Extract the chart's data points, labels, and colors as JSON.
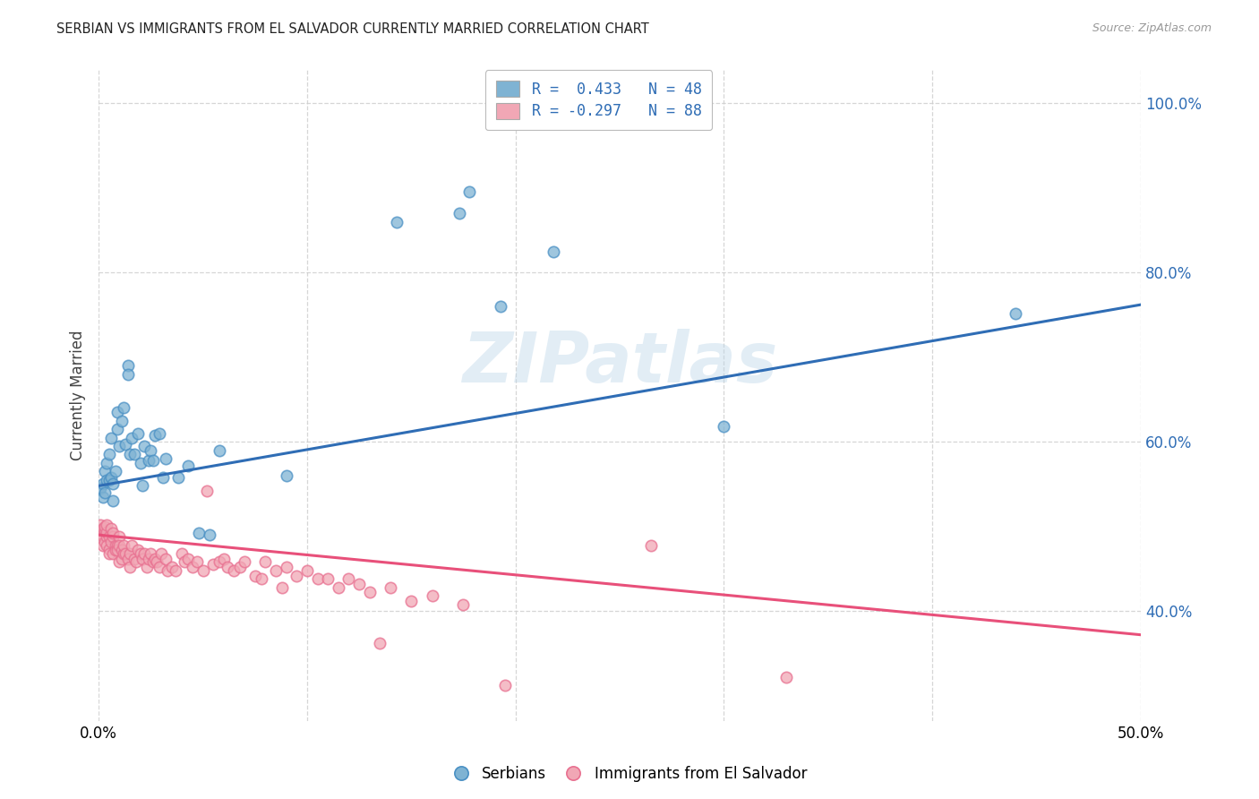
{
  "title": "SERBIAN VS IMMIGRANTS FROM EL SALVADOR CURRENTLY MARRIED CORRELATION CHART",
  "source": "Source: ZipAtlas.com",
  "ylabel": "Currently Married",
  "watermark": "ZIPatlas",
  "legend_r1": "R =  0.433",
  "legend_n1": "N = 48",
  "legend_r2": "R = -0.297",
  "legend_n2": "N = 88",
  "legend_label1": "Serbians",
  "legend_label2": "Immigrants from El Salvador",
  "xlim": [
    0.0,
    0.5
  ],
  "ylim": [
    0.27,
    1.04
  ],
  "yticks": [
    0.4,
    0.6,
    0.8,
    1.0
  ],
  "ytick_labels": [
    "40.0%",
    "60.0%",
    "80.0%",
    "100.0%"
  ],
  "xticks": [
    0.0,
    0.1,
    0.2,
    0.3,
    0.4,
    0.5
  ],
  "xtick_labels": [
    "0.0%",
    "",
    "",
    "",
    "",
    "50.0%"
  ],
  "blue_color": "#7FB3D3",
  "pink_color": "#F1A7B5",
  "blue_edge_color": "#4A90C4",
  "pink_edge_color": "#E87090",
  "blue_line_color": "#2F6DB5",
  "pink_line_color": "#E8507A",
  "blue_scatter": [
    [
      0.001,
      0.545
    ],
    [
      0.002,
      0.535
    ],
    [
      0.002,
      0.55
    ],
    [
      0.003,
      0.54
    ],
    [
      0.003,
      0.565
    ],
    [
      0.004,
      0.555
    ],
    [
      0.004,
      0.575
    ],
    [
      0.005,
      0.585
    ],
    [
      0.005,
      0.555
    ],
    [
      0.006,
      0.558
    ],
    [
      0.006,
      0.605
    ],
    [
      0.007,
      0.53
    ],
    [
      0.007,
      0.55
    ],
    [
      0.008,
      0.565
    ],
    [
      0.009,
      0.635
    ],
    [
      0.009,
      0.615
    ],
    [
      0.01,
      0.595
    ],
    [
      0.011,
      0.625
    ],
    [
      0.012,
      0.64
    ],
    [
      0.013,
      0.597
    ],
    [
      0.014,
      0.69
    ],
    [
      0.014,
      0.68
    ],
    [
      0.015,
      0.585
    ],
    [
      0.016,
      0.605
    ],
    [
      0.017,
      0.585
    ],
    [
      0.019,
      0.61
    ],
    [
      0.02,
      0.575
    ],
    [
      0.021,
      0.548
    ],
    [
      0.022,
      0.595
    ],
    [
      0.024,
      0.578
    ],
    [
      0.025,
      0.59
    ],
    [
      0.026,
      0.578
    ],
    [
      0.027,
      0.608
    ],
    [
      0.029,
      0.61
    ],
    [
      0.031,
      0.558
    ],
    [
      0.032,
      0.58
    ],
    [
      0.038,
      0.558
    ],
    [
      0.043,
      0.572
    ],
    [
      0.048,
      0.492
    ],
    [
      0.053,
      0.49
    ],
    [
      0.058,
      0.59
    ],
    [
      0.09,
      0.56
    ],
    [
      0.143,
      0.86
    ],
    [
      0.173,
      0.87
    ],
    [
      0.178,
      0.895
    ],
    [
      0.193,
      0.76
    ],
    [
      0.218,
      0.825
    ],
    [
      0.3,
      0.618
    ],
    [
      0.44,
      0.752
    ]
  ],
  "pink_scatter": [
    [
      0.001,
      0.492
    ],
    [
      0.001,
      0.502
    ],
    [
      0.002,
      0.488
    ],
    [
      0.002,
      0.498
    ],
    [
      0.002,
      0.478
    ],
    [
      0.003,
      0.495
    ],
    [
      0.003,
      0.5
    ],
    [
      0.003,
      0.482
    ],
    [
      0.004,
      0.488
    ],
    [
      0.004,
      0.493
    ],
    [
      0.004,
      0.502
    ],
    [
      0.004,
      0.478
    ],
    [
      0.005,
      0.473
    ],
    [
      0.005,
      0.488
    ],
    [
      0.005,
      0.468
    ],
    [
      0.006,
      0.498
    ],
    [
      0.006,
      0.482
    ],
    [
      0.007,
      0.488
    ],
    [
      0.007,
      0.492
    ],
    [
      0.007,
      0.468
    ],
    [
      0.008,
      0.478
    ],
    [
      0.008,
      0.472
    ],
    [
      0.009,
      0.478
    ],
    [
      0.009,
      0.472
    ],
    [
      0.01,
      0.488
    ],
    [
      0.01,
      0.478
    ],
    [
      0.01,
      0.458
    ],
    [
      0.011,
      0.472
    ],
    [
      0.011,
      0.462
    ],
    [
      0.012,
      0.468
    ],
    [
      0.012,
      0.478
    ],
    [
      0.013,
      0.468
    ],
    [
      0.014,
      0.462
    ],
    [
      0.015,
      0.468
    ],
    [
      0.015,
      0.452
    ],
    [
      0.016,
      0.478
    ],
    [
      0.017,
      0.462
    ],
    [
      0.018,
      0.458
    ],
    [
      0.019,
      0.472
    ],
    [
      0.02,
      0.468
    ],
    [
      0.021,
      0.462
    ],
    [
      0.022,
      0.468
    ],
    [
      0.023,
      0.452
    ],
    [
      0.024,
      0.462
    ],
    [
      0.025,
      0.468
    ],
    [
      0.026,
      0.458
    ],
    [
      0.027,
      0.462
    ],
    [
      0.028,
      0.458
    ],
    [
      0.029,
      0.452
    ],
    [
      0.03,
      0.468
    ],
    [
      0.032,
      0.462
    ],
    [
      0.033,
      0.448
    ],
    [
      0.035,
      0.452
    ],
    [
      0.037,
      0.448
    ],
    [
      0.04,
      0.468
    ],
    [
      0.041,
      0.458
    ],
    [
      0.043,
      0.462
    ],
    [
      0.045,
      0.452
    ],
    [
      0.047,
      0.458
    ],
    [
      0.05,
      0.448
    ],
    [
      0.052,
      0.542
    ],
    [
      0.055,
      0.455
    ],
    [
      0.058,
      0.458
    ],
    [
      0.06,
      0.462
    ],
    [
      0.062,
      0.452
    ],
    [
      0.065,
      0.448
    ],
    [
      0.068,
      0.452
    ],
    [
      0.07,
      0.458
    ],
    [
      0.075,
      0.442
    ],
    [
      0.078,
      0.438
    ],
    [
      0.08,
      0.458
    ],
    [
      0.085,
      0.448
    ],
    [
      0.088,
      0.428
    ],
    [
      0.09,
      0.452
    ],
    [
      0.095,
      0.442
    ],
    [
      0.1,
      0.448
    ],
    [
      0.105,
      0.438
    ],
    [
      0.11,
      0.438
    ],
    [
      0.115,
      0.428
    ],
    [
      0.12,
      0.438
    ],
    [
      0.125,
      0.432
    ],
    [
      0.13,
      0.422
    ],
    [
      0.135,
      0.362
    ],
    [
      0.14,
      0.428
    ],
    [
      0.15,
      0.412
    ],
    [
      0.16,
      0.418
    ],
    [
      0.175,
      0.408
    ],
    [
      0.195,
      0.312
    ],
    [
      0.265,
      0.478
    ],
    [
      0.33,
      0.322
    ]
  ],
  "blue_trendline": [
    [
      0.0,
      0.548
    ],
    [
      0.5,
      0.762
    ]
  ],
  "pink_trendline": [
    [
      0.0,
      0.49
    ],
    [
      0.5,
      0.372
    ]
  ]
}
